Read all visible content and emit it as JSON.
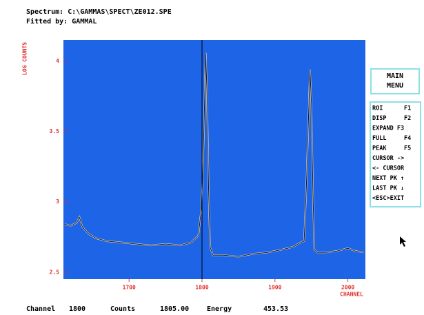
{
  "header": {
    "spectrum": "Spectrum: C:\\GAMMAS\\SPECT\\ZE012.SPE",
    "fitted": "Fitted by: GAMMAL"
  },
  "chart_data": {
    "type": "line",
    "ylabel": "LOG COUNTS",
    "xlabel": "CHANNEL",
    "xlim": [
      1610,
      2024
    ],
    "ylim": [
      2.45,
      4.15
    ],
    "xticks": [
      1700,
      1800,
      1900,
      2000
    ],
    "yticks": [
      4,
      3.5,
      3,
      2.5
    ],
    "background": "#1e64e6",
    "series": [
      {
        "color": "#101010",
        "x": [
          1612,
          1620,
          1628,
          1632,
          1636,
          1645,
          1655,
          1670,
          1690,
          1710,
          1730,
          1750,
          1770,
          1785,
          1795,
          1799,
          1801,
          1803,
          1805,
          1807,
          1809,
          1811,
          1815,
          1830,
          1850,
          1870,
          1890,
          1910,
          1925,
          1935,
          1940,
          1943,
          1946,
          1948,
          1950,
          1952,
          1954,
          1958,
          1970,
          1985,
          2000,
          2010,
          2022
        ],
        "values": [
          2.84,
          2.83,
          2.85,
          2.89,
          2.82,
          2.77,
          2.74,
          2.72,
          2.71,
          2.7,
          2.69,
          2.7,
          2.69,
          2.71,
          2.76,
          2.95,
          3.2,
          3.6,
          4.06,
          3.75,
          3.1,
          2.68,
          2.62,
          2.62,
          2.61,
          2.63,
          2.64,
          2.66,
          2.68,
          2.71,
          2.72,
          3.1,
          3.6,
          3.94,
          3.7,
          3.1,
          2.66,
          2.64,
          2.64,
          2.65,
          2.67,
          2.65,
          2.64
        ]
      }
    ]
  },
  "menu": {
    "title": [
      "MAIN",
      "MENU"
    ],
    "items": [
      "ROI      F1",
      "DISP     F2",
      "EXPAND F3",
      "FULL     F4",
      "PEAK     F5",
      "CURSOR ->",
      "<- CURSOR",
      "NEXT PK ↑",
      "LAST PK ↓",
      "<ESC>EXIT"
    ]
  },
  "status": {
    "channel_label": "Channel",
    "channel": 1800,
    "counts_label": "Counts",
    "counts": "1805.00",
    "energy_label": "Energy",
    "energy": "453.53"
  }
}
